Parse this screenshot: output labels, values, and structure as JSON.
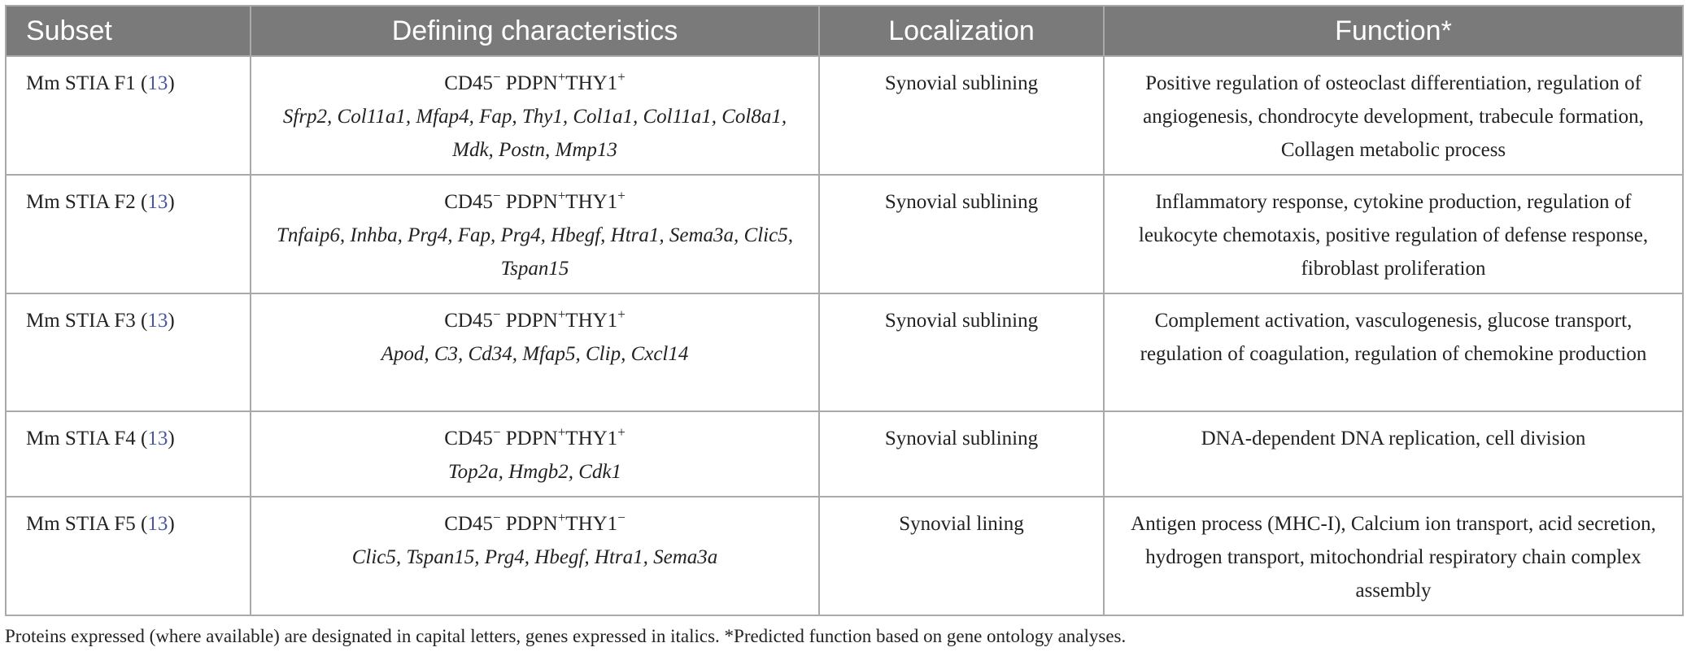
{
  "headers": {
    "subset": "Subset",
    "characteristics": "Defining characteristics",
    "localization": "Localization",
    "function": "Function*"
  },
  "rows": [
    {
      "subset": "Mm STIA F1",
      "ref": "13",
      "marker_cd45": "CD45",
      "sup1": "−",
      "marker_pdpn": " PDPN",
      "sup2": "+",
      "marker_thy1": "THY1",
      "sup3": "+",
      "genes": "Sfrp2, Col11a1, Mfap4, Fap, Thy1, Col1a1, Col11a1, Col8a1, Mdk, Postn, Mmp13",
      "localization": "Synovial sublining",
      "function": "Positive regulation of osteoclast differentiation, regulation of angiogenesis, chondrocyte development, trabecule formation, Collagen metabolic process"
    },
    {
      "subset": "Mm STIA F2",
      "ref": "13",
      "marker_cd45": "CD45",
      "sup1": "−",
      "marker_pdpn": " PDPN",
      "sup2": "+",
      "marker_thy1": "THY1",
      "sup3": "+",
      "genes": "Tnfaip6, Inhba, Prg4, Fap, Prg4, Hbegf, Htra1, Sema3a, Clic5, Tspan15",
      "localization": "Synovial sublining",
      "function": "Inflammatory response, cytokine production, regulation of leukocyte chemotaxis, positive regulation of defense response, fibroblast proliferation"
    },
    {
      "subset": "Mm STIA F3",
      "ref": "13",
      "marker_cd45": "CD45",
      "sup1": "−",
      "marker_pdpn": " PDPN",
      "sup2": "+",
      "marker_thy1": "THY1",
      "sup3": "+",
      "genes": "Apod, C3, Cd34, Mfap5, Clip, Cxcl14",
      "localization": "Synovial sublining",
      "function": "Complement activation, vasculogenesis, glucose transport, regulation of coagulation, regulation of chemokine production"
    },
    {
      "subset": "Mm STIA F4",
      "ref": "13",
      "marker_cd45": "CD45",
      "sup1": "−",
      "marker_pdpn": " PDPN",
      "sup2": "+",
      "marker_thy1": "THY1",
      "sup3": "+",
      "genes": "Top2a, Hmgb2, Cdk1",
      "localization": "Synovial sublining",
      "function": "DNA-dependent DNA replication, cell division"
    },
    {
      "subset": "Mm STIA F5",
      "ref": "13",
      "marker_cd45": "CD45",
      "sup1": "−",
      "marker_pdpn": " PDPN",
      "sup2": "+",
      "marker_thy1": "THY1",
      "sup3": "−",
      "genes": "Clic5, Tspan15, Prg4, Hbegf, Htra1, Sema3a",
      "localization": "Synovial lining",
      "function": "Antigen process (MHC-I), Calcium ion transport, acid secretion, hydrogen transport, mitochondrial respiratory chain complex assembly"
    }
  ],
  "footnote": "Proteins expressed (where available) are designated in capital letters, genes expressed in italics. *Predicted function based on gene ontology analyses."
}
